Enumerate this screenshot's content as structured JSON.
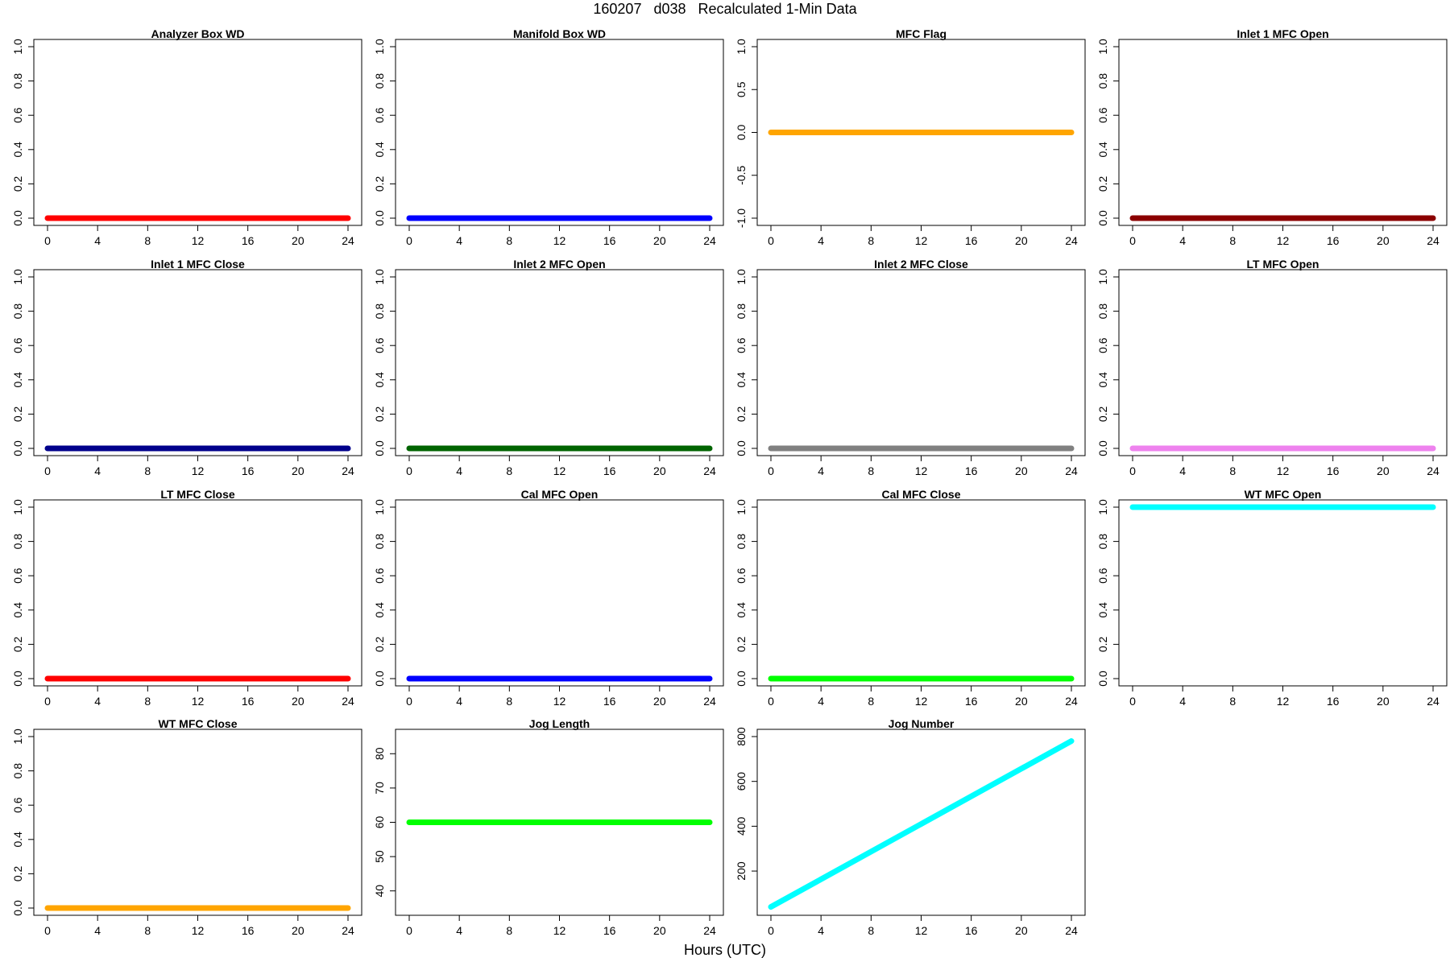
{
  "title": "160207   d038   Recalculated 1-Min Data",
  "xlabel": "Hours (UTC)",
  "chart_data": [
    {
      "type": "line",
      "title": "Analyzer Box WD",
      "x": [
        0,
        24
      ],
      "series": [
        {
          "values": [
            0,
            0
          ],
          "color": "#ff0000"
        }
      ],
      "xlim": [
        0,
        24
      ],
      "xticks": [
        0,
        4,
        8,
        12,
        16,
        20,
        24
      ],
      "ylim": [
        0,
        1
      ],
      "yticks": [
        "0.0",
        "0.2",
        "0.4",
        "0.6",
        "0.8",
        "1.0"
      ]
    },
    {
      "type": "line",
      "title": "Manifold Box WD",
      "x": [
        0,
        24
      ],
      "series": [
        {
          "values": [
            0,
            0
          ],
          "color": "#0000ff"
        }
      ],
      "xlim": [
        0,
        24
      ],
      "xticks": [
        0,
        4,
        8,
        12,
        16,
        20,
        24
      ],
      "ylim": [
        0,
        1
      ],
      "yticks": [
        "0.0",
        "0.2",
        "0.4",
        "0.6",
        "0.8",
        "1.0"
      ]
    },
    {
      "type": "line",
      "title": "MFC Flag",
      "x": [
        0,
        24
      ],
      "series": [
        {
          "values": [
            0,
            0
          ],
          "color": "#ffa500"
        }
      ],
      "xlim": [
        0,
        24
      ],
      "xticks": [
        0,
        4,
        8,
        12,
        16,
        20,
        24
      ],
      "ylim": [
        -1,
        1
      ],
      "yticks": [
        "-1.0",
        "-0.5",
        "0.0",
        "0.5",
        "1.0"
      ]
    },
    {
      "type": "line",
      "title": "Inlet 1 MFC Open",
      "x": [
        0,
        24
      ],
      "series": [
        {
          "values": [
            0,
            0
          ],
          "color": "#8b0000"
        }
      ],
      "xlim": [
        0,
        24
      ],
      "xticks": [
        0,
        4,
        8,
        12,
        16,
        20,
        24
      ],
      "ylim": [
        0,
        1
      ],
      "yticks": [
        "0.0",
        "0.2",
        "0.4",
        "0.6",
        "0.8",
        "1.0"
      ]
    },
    {
      "type": "line",
      "title": "Inlet 1 MFC Close",
      "x": [
        0,
        24
      ],
      "series": [
        {
          "values": [
            0,
            0
          ],
          "color": "#00008b"
        }
      ],
      "xlim": [
        0,
        24
      ],
      "xticks": [
        0,
        4,
        8,
        12,
        16,
        20,
        24
      ],
      "ylim": [
        0,
        1
      ],
      "yticks": [
        "0.0",
        "0.2",
        "0.4",
        "0.6",
        "0.8",
        "1.0"
      ]
    },
    {
      "type": "line",
      "title": "Inlet 2 MFC Open",
      "x": [
        0,
        24
      ],
      "series": [
        {
          "values": [
            0,
            0
          ],
          "color": "#006400"
        }
      ],
      "xlim": [
        0,
        24
      ],
      "xticks": [
        0,
        4,
        8,
        12,
        16,
        20,
        24
      ],
      "ylim": [
        0,
        1
      ],
      "yticks": [
        "0.0",
        "0.2",
        "0.4",
        "0.6",
        "0.8",
        "1.0"
      ]
    },
    {
      "type": "line",
      "title": "Inlet 2 MFC Close",
      "x": [
        0,
        24
      ],
      "series": [
        {
          "values": [
            0,
            0
          ],
          "color": "#808080"
        }
      ],
      "xlim": [
        0,
        24
      ],
      "xticks": [
        0,
        4,
        8,
        12,
        16,
        20,
        24
      ],
      "ylim": [
        0,
        1
      ],
      "yticks": [
        "0.0",
        "0.2",
        "0.4",
        "0.6",
        "0.8",
        "1.0"
      ]
    },
    {
      "type": "line",
      "title": "LT MFC Open",
      "x": [
        0,
        24
      ],
      "series": [
        {
          "values": [
            0,
            0
          ],
          "color": "#ee82ee"
        }
      ],
      "xlim": [
        0,
        24
      ],
      "xticks": [
        0,
        4,
        8,
        12,
        16,
        20,
        24
      ],
      "ylim": [
        0,
        1
      ],
      "yticks": [
        "0.0",
        "0.2",
        "0.4",
        "0.6",
        "0.8",
        "1.0"
      ]
    },
    {
      "type": "line",
      "title": "LT MFC Close",
      "x": [
        0,
        24
      ],
      "series": [
        {
          "values": [
            0,
            0
          ],
          "color": "#ff0000"
        }
      ],
      "xlim": [
        0,
        24
      ],
      "xticks": [
        0,
        4,
        8,
        12,
        16,
        20,
        24
      ],
      "ylim": [
        0,
        1
      ],
      "yticks": [
        "0.0",
        "0.2",
        "0.4",
        "0.6",
        "0.8",
        "1.0"
      ]
    },
    {
      "type": "line",
      "title": "Cal MFC Open",
      "x": [
        0,
        24
      ],
      "series": [
        {
          "values": [
            0,
            0
          ],
          "color": "#0000ff"
        }
      ],
      "xlim": [
        0,
        24
      ],
      "xticks": [
        0,
        4,
        8,
        12,
        16,
        20,
        24
      ],
      "ylim": [
        0,
        1
      ],
      "yticks": [
        "0.0",
        "0.2",
        "0.4",
        "0.6",
        "0.8",
        "1.0"
      ]
    },
    {
      "type": "line",
      "title": "Cal MFC Close",
      "x": [
        0,
        24
      ],
      "series": [
        {
          "values": [
            0,
            0
          ],
          "color": "#00ff00"
        }
      ],
      "xlim": [
        0,
        24
      ],
      "xticks": [
        0,
        4,
        8,
        12,
        16,
        20,
        24
      ],
      "ylim": [
        0,
        1
      ],
      "yticks": [
        "0.0",
        "0.2",
        "0.4",
        "0.6",
        "0.8",
        "1.0"
      ]
    },
    {
      "type": "line",
      "title": "WT MFC Open",
      "x": [
        0,
        24
      ],
      "series": [
        {
          "values": [
            1,
            1
          ],
          "color": "#00ffff"
        }
      ],
      "xlim": [
        0,
        24
      ],
      "xticks": [
        0,
        4,
        8,
        12,
        16,
        20,
        24
      ],
      "ylim": [
        0,
        1
      ],
      "yticks": [
        "0.0",
        "0.2",
        "0.4",
        "0.6",
        "0.8",
        "1.0"
      ]
    },
    {
      "type": "line",
      "title": "WT MFC Close",
      "x": [
        0,
        24
      ],
      "series": [
        {
          "values": [
            0,
            0
          ],
          "color": "#ffa500"
        }
      ],
      "xlim": [
        0,
        24
      ],
      "xticks": [
        0,
        4,
        8,
        12,
        16,
        20,
        24
      ],
      "ylim": [
        0,
        1
      ],
      "yticks": [
        "0.0",
        "0.2",
        "0.4",
        "0.6",
        "0.8",
        "1.0"
      ]
    },
    {
      "type": "line",
      "title": "Jog Length",
      "x": [
        0,
        24
      ],
      "series": [
        {
          "values": [
            60,
            60
          ],
          "color": "#00ff00"
        }
      ],
      "xlim": [
        0,
        24
      ],
      "xticks": [
        0,
        4,
        8,
        12,
        16,
        20,
        24
      ],
      "ylim": [
        35,
        85
      ],
      "yticks": [
        "40",
        "50",
        "60",
        "70",
        "80"
      ]
    },
    {
      "type": "line",
      "title": "Jog Number",
      "x": [
        0,
        24
      ],
      "series": [
        {
          "values": [
            40,
            780
          ],
          "color": "#00ffff"
        }
      ],
      "xlim": [
        0,
        24
      ],
      "xticks": [
        0,
        4,
        8,
        12,
        16,
        20,
        24
      ],
      "ylim": [
        35,
        800
      ],
      "yticks": [
        "200",
        "400",
        "600",
        "800"
      ]
    }
  ]
}
